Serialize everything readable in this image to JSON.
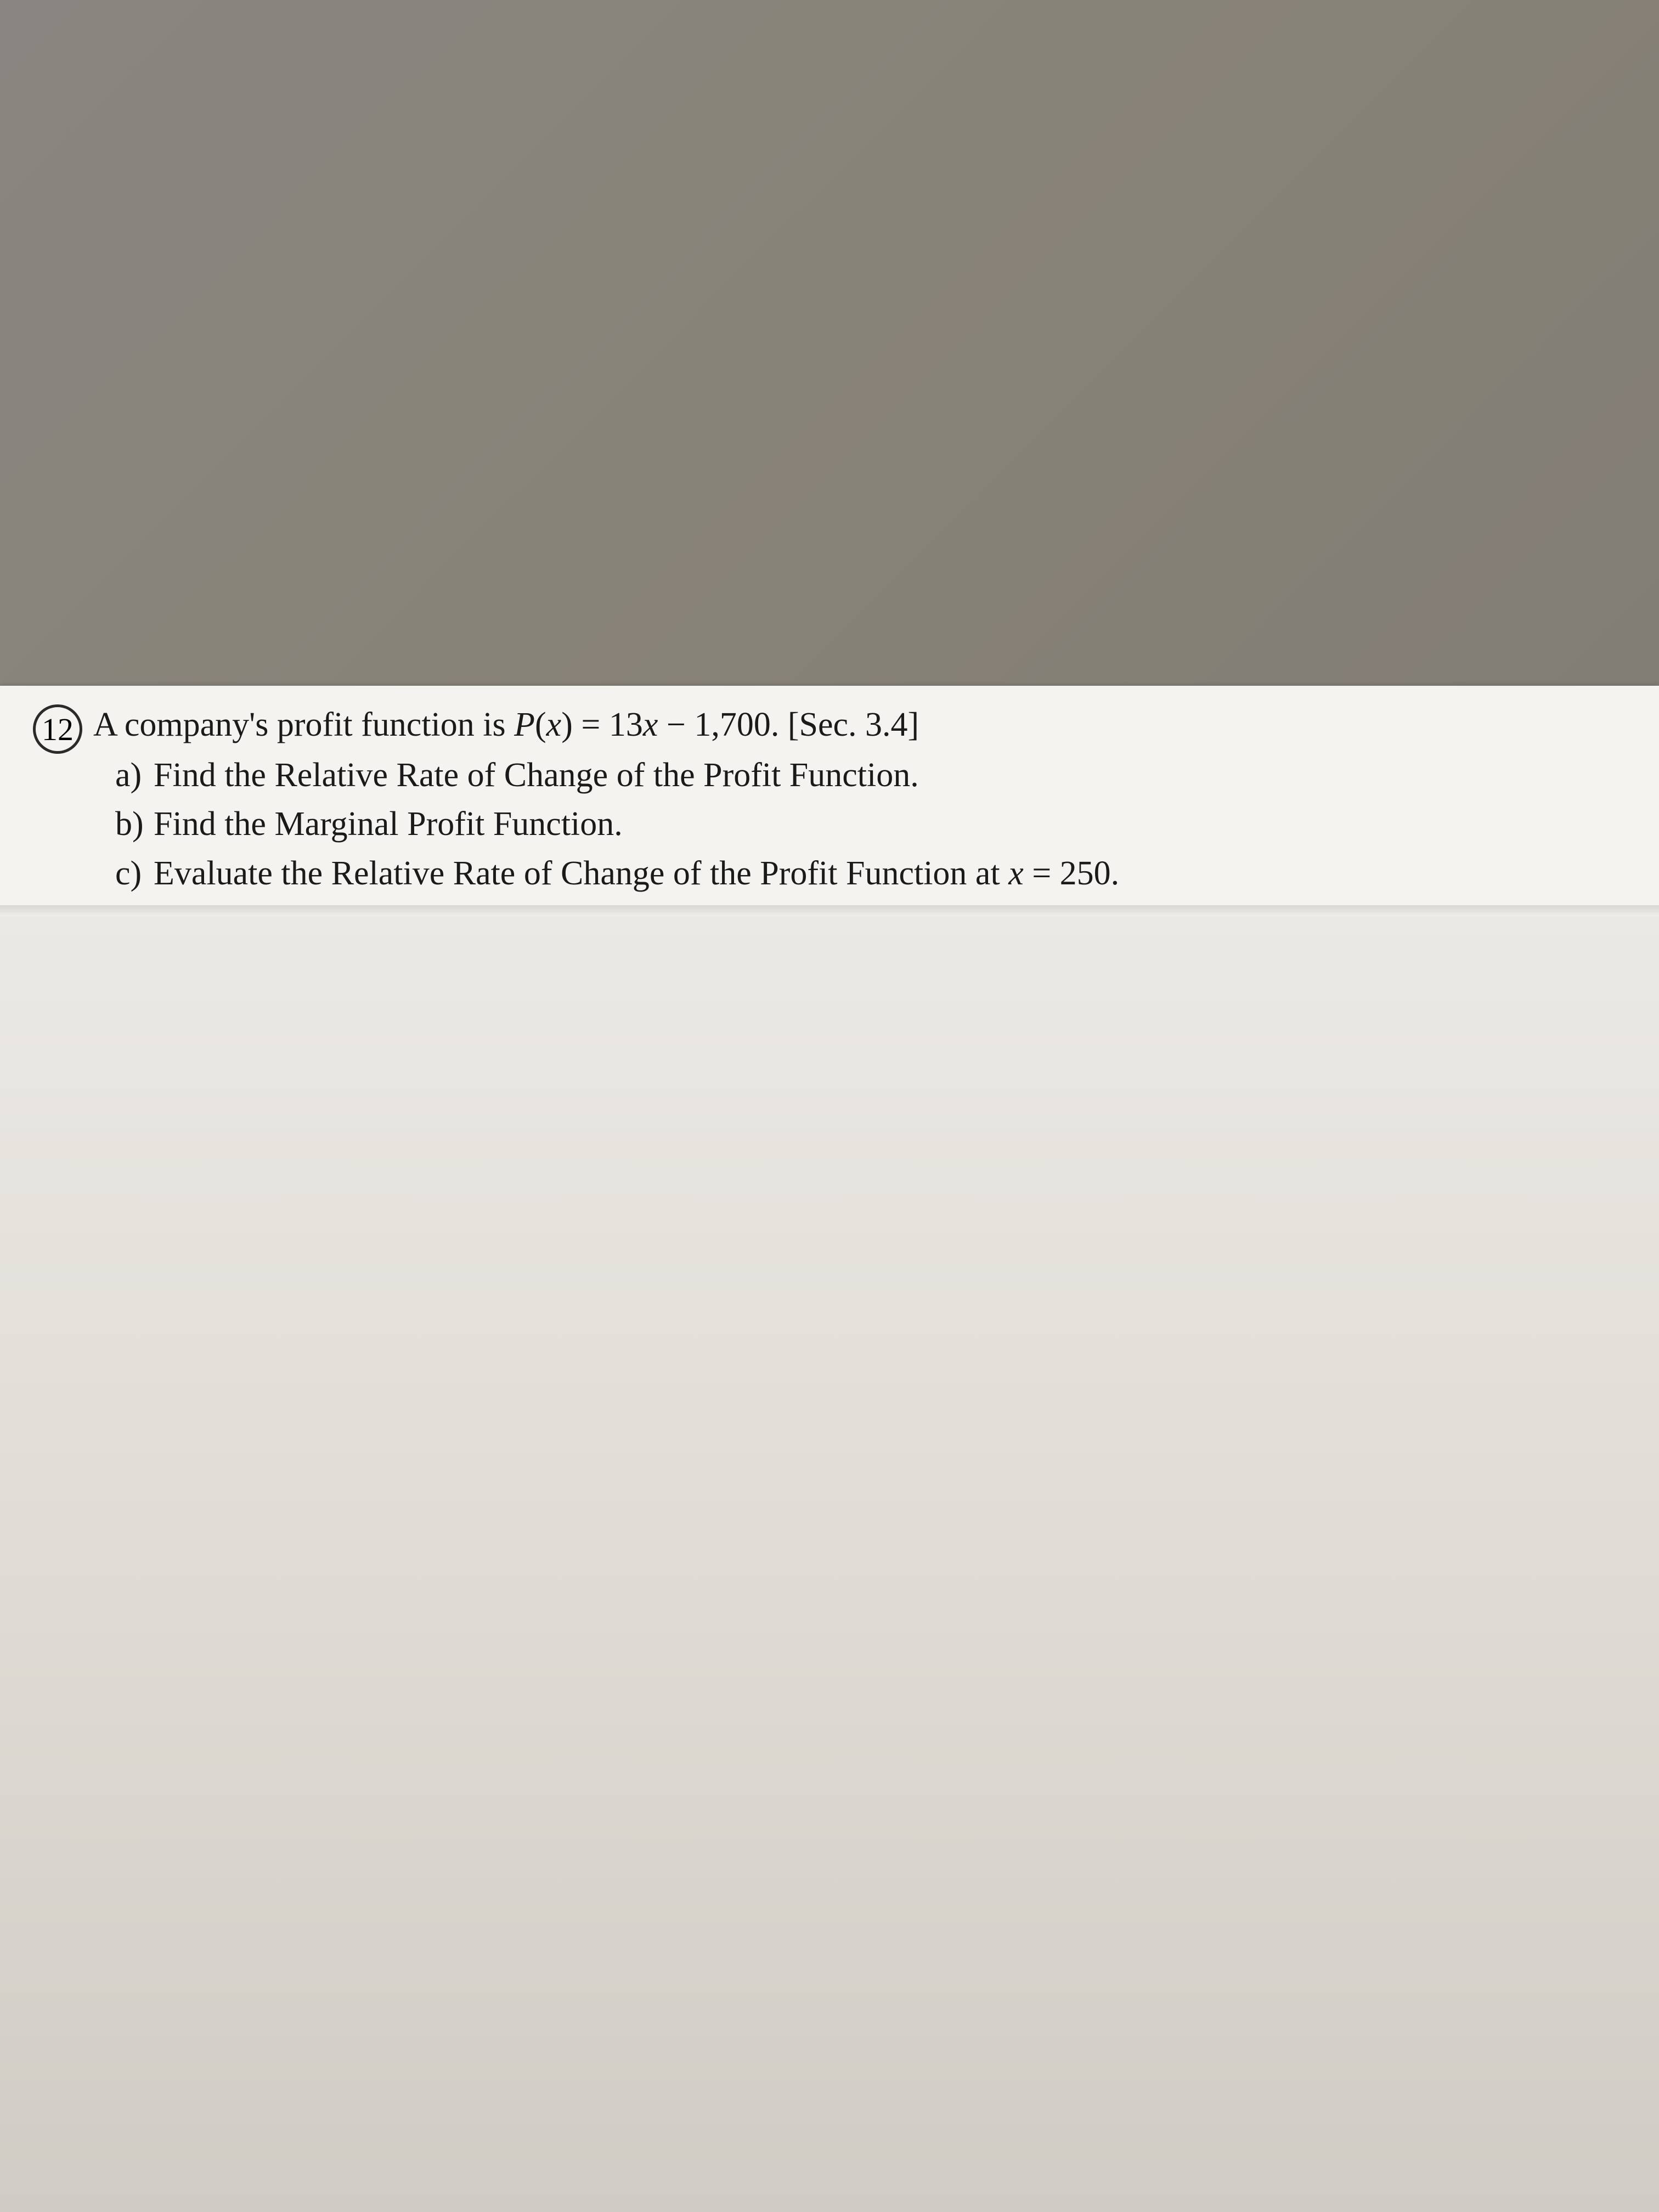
{
  "problem": {
    "number": "12",
    "stem_prefix": "A company's profit function is ",
    "function_name": "P",
    "function_arg": "x",
    "equals": " = ",
    "expression": "13",
    "variable": "x",
    "expression_tail": " − 1,700. ",
    "section_ref": "[Sec. 3.4]",
    "parts": [
      {
        "label": "a)",
        "text": "Find the Relative Rate of Change of the Profit Function."
      },
      {
        "label": "b)",
        "text": "Find the Marginal Profit Function."
      },
      {
        "label": "c)",
        "text_prefix": "Evaluate the Relative Rate of Change of the Profit Function at ",
        "var": "x",
        "text_suffix": " = 250."
      }
    ]
  },
  "colors": {
    "desk": "#888378",
    "paper": "#f5f3ef",
    "text": "#1a1a1a",
    "circle_border": "#2a2a2a"
  }
}
